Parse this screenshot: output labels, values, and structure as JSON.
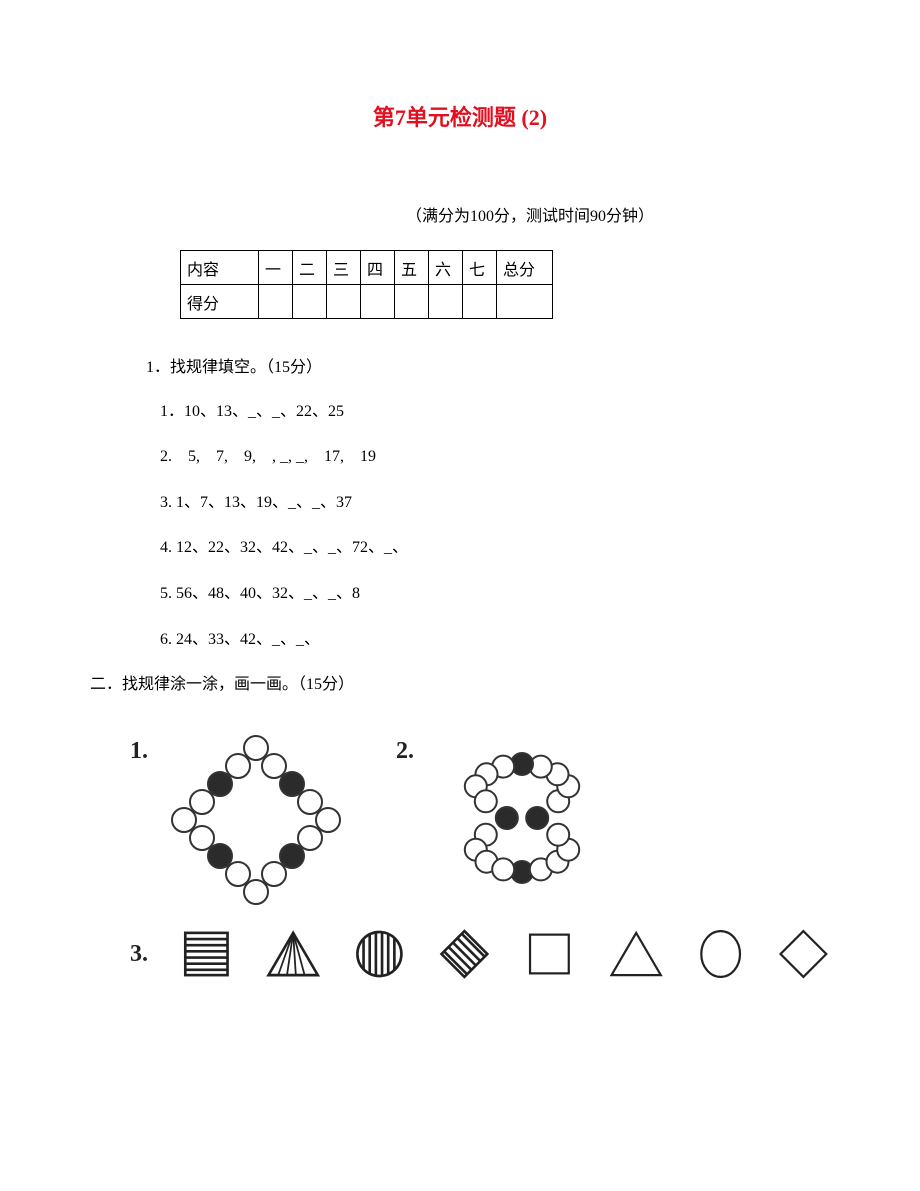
{
  "title": "第7单元检测题 (2)",
  "subtitle": "（满分为100分，测试时间90分钟）",
  "scoreTable": {
    "rowLabels": [
      "内容",
      "得分"
    ],
    "columns": [
      "一",
      "二",
      "三",
      "四",
      "五",
      "六",
      "七",
      "总分"
    ]
  },
  "section1": {
    "heading": "1．找规律填空。（15分）",
    "items": [
      "1．10、13、_、_、22、25",
      "2.　5,　7,　9,　, _, _,　17,　19",
      "3. 1、7、13、19、_、_、37",
      "4. 12、22、32、42、_、_、72、_、",
      "5. 56、48、40、32、_、_、8",
      "6. 24、33、42、_、_、"
    ]
  },
  "section2": {
    "heading": "二．找规律涂一涂，画一画。（15分）",
    "figLabels": [
      "1.",
      "2.",
      "3."
    ]
  },
  "colors": {
    "titleColor": "#e01020",
    "text": "#000000",
    "ringStroke": "#333333",
    "beadFill": "#2b2b2b",
    "shapeStroke": "#222222"
  }
}
